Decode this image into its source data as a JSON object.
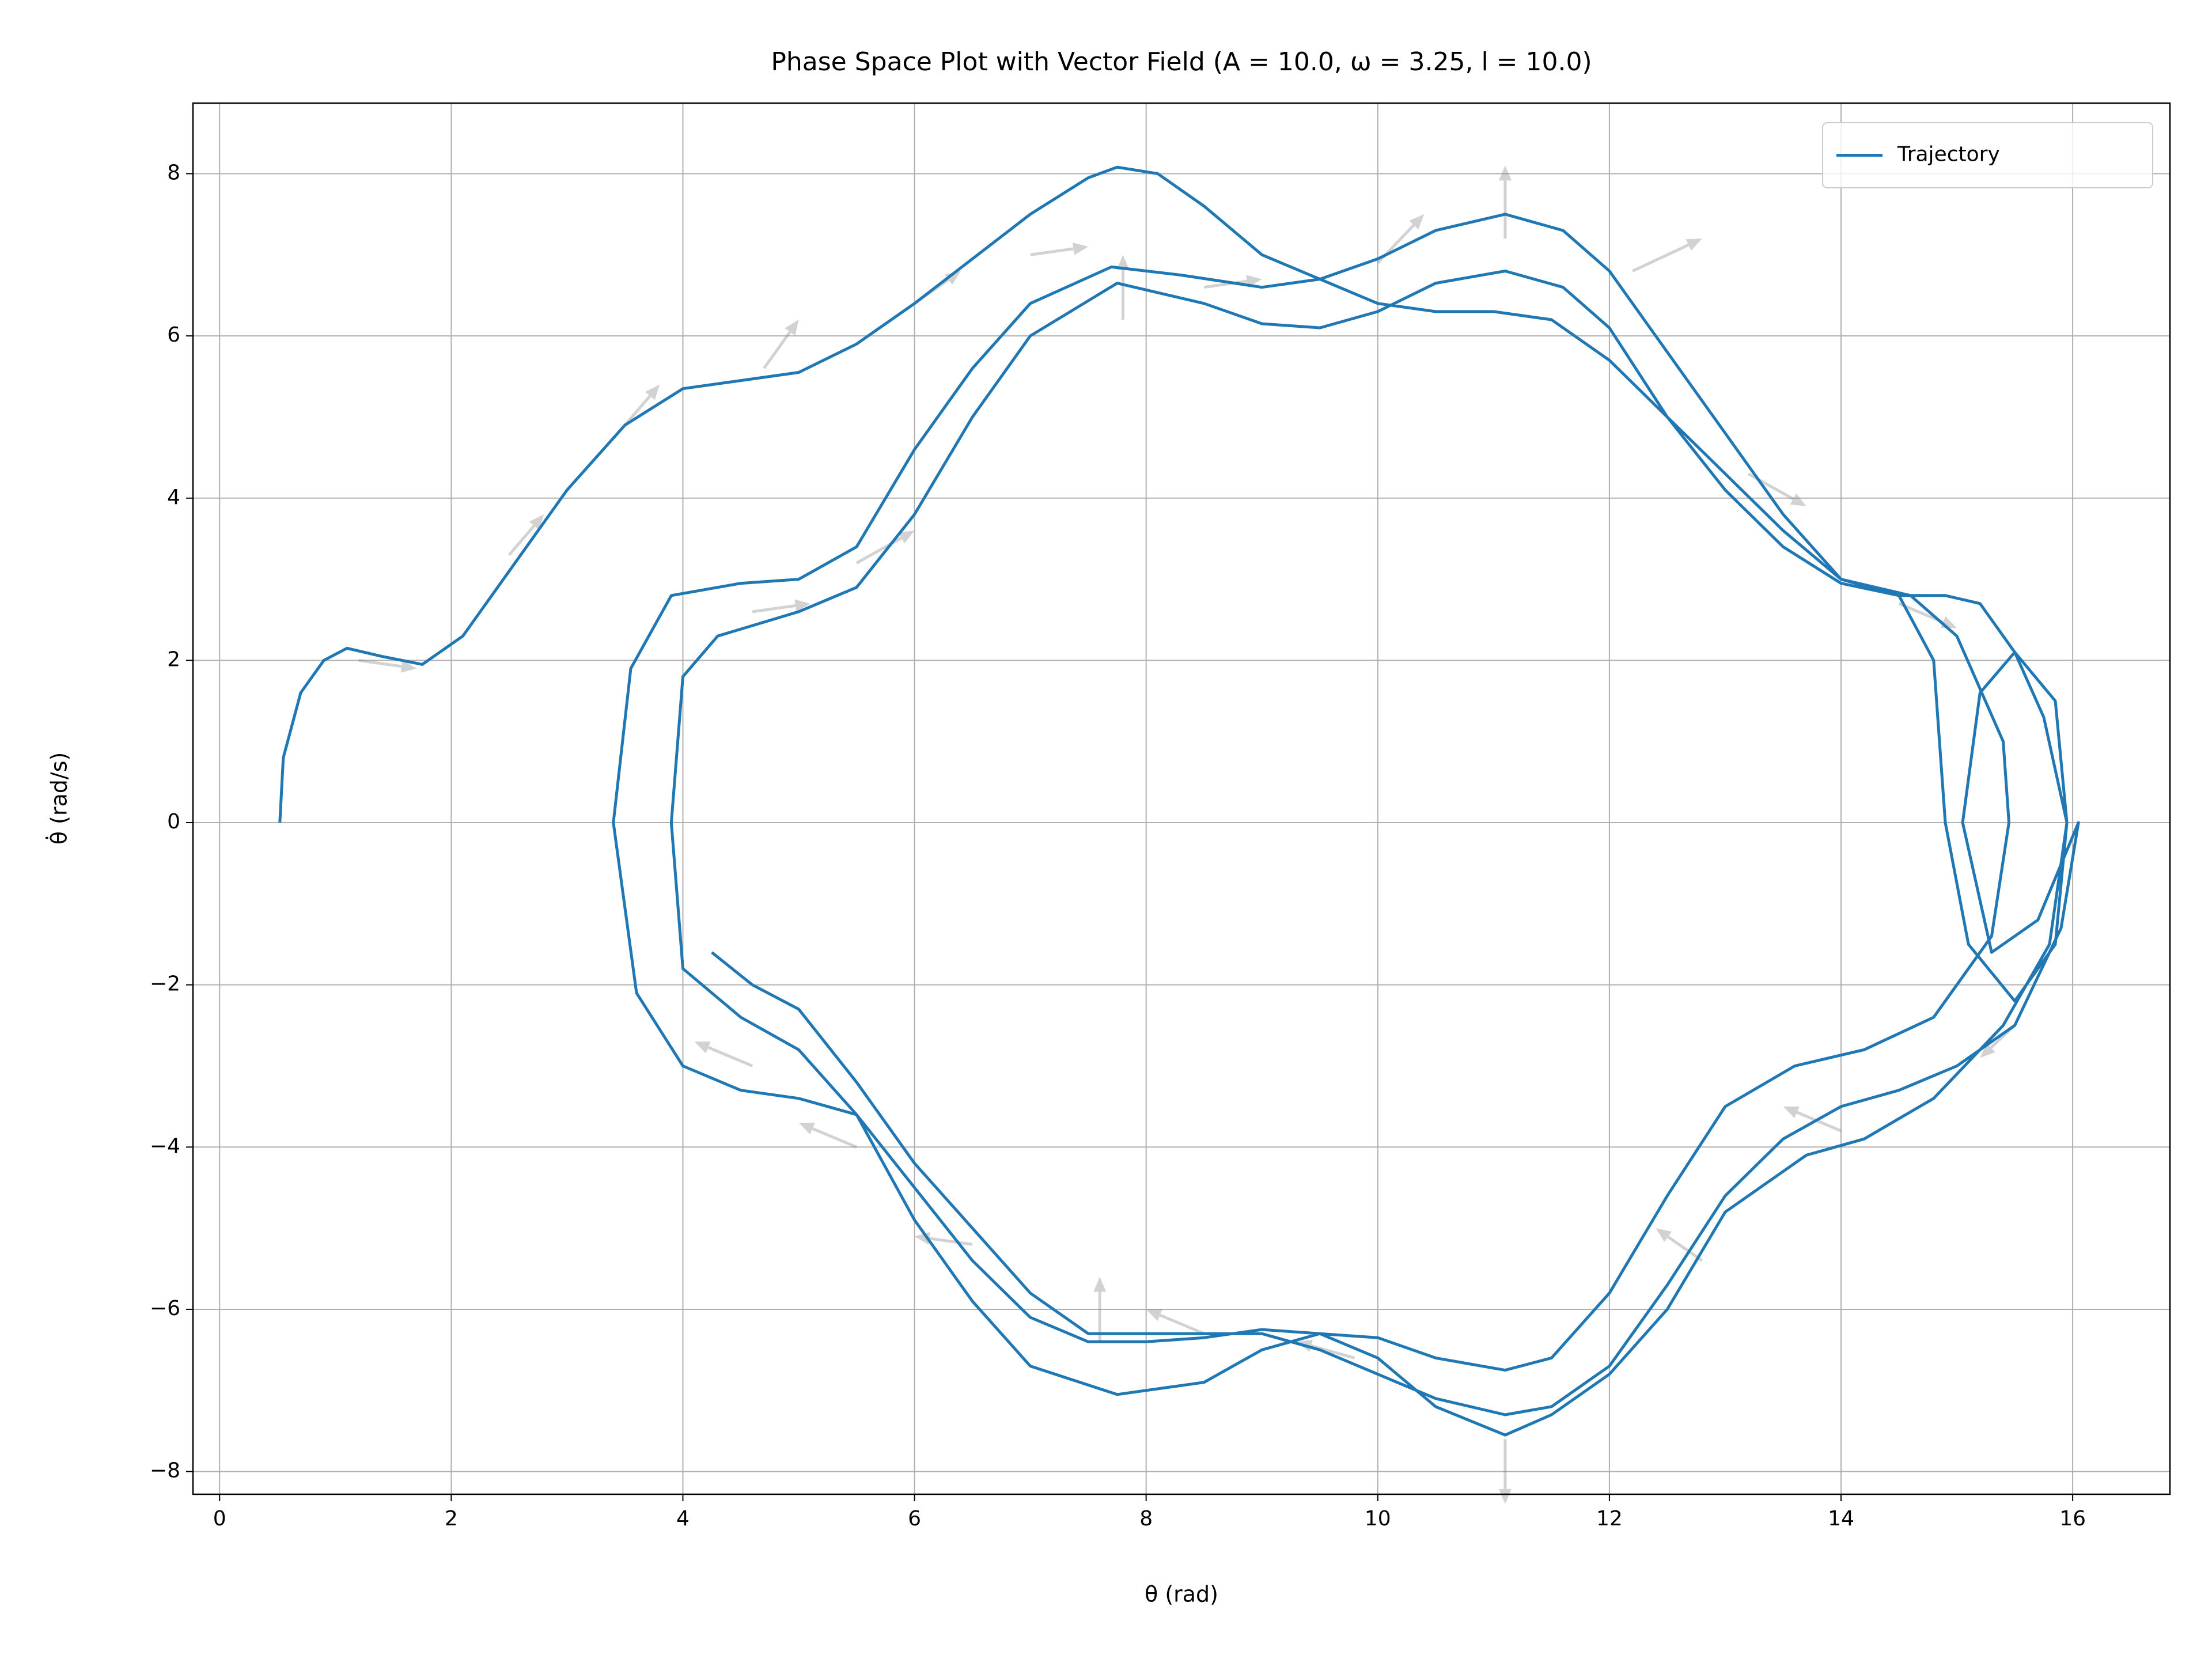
{
  "chart_data": {
    "type": "line",
    "title": "Phase Space Plot with Vector Field (A = 10.0, ω = 3.25, l = 10.0)",
    "xlabel": "θ (rad)",
    "ylabel": "θ̇ (rad/s)",
    "xlim": [
      -0.23,
      16.84
    ],
    "ylim": [
      -8.28,
      8.87
    ],
    "xticks": [
      0,
      2,
      4,
      6,
      8,
      10,
      12,
      14,
      16
    ],
    "yticks": [
      {
        "value": -8,
        "label": "−8"
      },
      {
        "value": -6,
        "label": "−6"
      },
      {
        "value": -4,
        "label": "−4"
      },
      {
        "value": -2,
        "label": "−2"
      },
      0,
      2,
      4,
      6,
      8
    ],
    "grid": true,
    "legend": "upper right",
    "series": [
      {
        "name": "Trajectory",
        "color": "#1f77b4",
        "x": [
          0.52,
          0.55,
          0.7,
          0.9,
          1.1,
          1.4,
          1.75,
          2.1,
          2.5,
          3,
          3.5,
          4,
          4.5,
          5,
          5.5,
          6,
          6.5,
          7,
          7.5,
          7.75,
          8.1,
          8.5,
          9,
          9.5,
          10,
          10.5,
          11,
          11.5,
          12,
          12.5,
          13,
          13.5,
          14,
          14.5,
          14.9,
          15.2,
          15.5,
          15.75,
          15.95,
          15.8,
          15.4,
          14.8,
          14.2,
          13.7,
          13,
          12.5,
          12,
          11.5,
          11.1,
          10.5,
          10,
          9.5,
          9,
          8.5,
          8,
          7.5,
          7,
          6.5,
          6,
          5.5,
          5,
          4.5,
          4,
          3.6,
          3.4,
          3.55,
          3.9,
          4.5,
          5,
          5.5,
          6,
          6.5,
          7,
          7.7,
          8.3,
          9,
          9.5,
          10,
          10.5,
          11.1,
          11.6,
          12,
          12.5,
          13,
          13.5,
          14,
          14.6,
          15,
          15.4,
          15.45,
          15.3,
          14.8,
          14.2,
          13.6,
          13,
          12.5,
          12,
          11.5,
          11.1,
          10.5,
          10,
          9.5,
          9,
          8.5,
          7.75,
          7,
          6.5,
          6,
          5.5,
          5,
          4.5,
          4,
          3.9,
          4,
          4.3,
          5,
          5.5,
          6,
          6.5,
          7,
          7.75,
          8.5,
          9,
          9.5,
          10,
          10.5,
          11.1,
          11.6,
          12,
          12.5,
          13,
          13.5,
          14,
          14.5,
          14.8,
          14.9,
          15.1,
          15.5,
          15.85,
          15.95,
          15.85,
          15.5,
          15.2,
          15.05,
          15.3,
          15.7,
          16.05,
          15.9,
          15.5,
          15,
          14.5,
          14,
          13.5,
          13,
          12.5,
          12,
          11.5,
          11.1,
          10.5,
          10,
          9.5,
          9,
          8.5,
          8,
          7.5,
          7,
          6.5,
          6,
          5.5,
          5,
          4.6,
          4.25
        ],
        "y": [
          0,
          0.8,
          1.6,
          2.0,
          2.15,
          2.05,
          1.95,
          2.3,
          3.1,
          4.1,
          4.9,
          5.35,
          5.45,
          5.55,
          5.9,
          6.4,
          6.95,
          7.5,
          7.95,
          8.08,
          8.0,
          7.6,
          7.0,
          6.7,
          6.4,
          6.3,
          6.3,
          6.2,
          5.7,
          5.0,
          4.3,
          3.6,
          3.0,
          2.8,
          2.8,
          2.7,
          2.1,
          1.3,
          0,
          -1.5,
          -2.5,
          -3.4,
          -3.9,
          -4.1,
          -4.8,
          -6.0,
          -6.8,
          -7.3,
          -7.55,
          -7.2,
          -6.6,
          -6.3,
          -6.25,
          -6.35,
          -6.4,
          -6.4,
          -6.1,
          -5.4,
          -4.5,
          -3.6,
          -3.4,
          -3.3,
          -3.0,
          -2.1,
          0,
          1.9,
          2.8,
          2.95,
          3.0,
          3.4,
          4.6,
          5.6,
          6.4,
          6.85,
          6.75,
          6.6,
          6.7,
          6.95,
          7.3,
          7.5,
          7.3,
          6.8,
          5.8,
          4.8,
          3.8,
          3.0,
          2.8,
          2.3,
          1.0,
          0,
          -1.4,
          -2.4,
          -2.8,
          -3.0,
          -3.5,
          -4.6,
          -5.8,
          -6.6,
          -6.75,
          -6.6,
          -6.35,
          -6.3,
          -6.5,
          -6.9,
          -7.05,
          -6.7,
          -5.9,
          -4.9,
          -3.6,
          -2.8,
          -2.4,
          -1.8,
          0,
          1.8,
          2.3,
          2.6,
          2.9,
          3.8,
          5.0,
          6.0,
          6.65,
          6.4,
          6.15,
          6.1,
          6.3,
          6.65,
          6.8,
          6.6,
          6.1,
          5.0,
          4.1,
          3.4,
          2.95,
          2.8,
          2.0,
          0,
          -1.5,
          -2.2,
          -1.5,
          0,
          1.5,
          2.1,
          1.6,
          0,
          -1.6,
          -1.2,
          0,
          -1.3,
          -2.5,
          -3.0,
          -3.3,
          -3.5,
          -3.9,
          -4.6,
          -5.7,
          -6.7,
          -7.2,
          -7.3,
          -7.1,
          -6.8,
          -6.5,
          -6.3,
          -6.3,
          -6.3,
          -6.3,
          -5.8,
          -5.0,
          -4.2,
          -3.2,
          -2.3,
          -2.0,
          -1.6
        ]
      }
    ],
    "quiver": {
      "color": "#808080",
      "x": [
        1.2,
        2.5,
        3.5,
        4.7,
        6,
        7,
        7.8,
        8.5,
        10,
        11.1,
        12.2,
        13.2,
        14.5,
        15.5,
        14,
        12.8,
        11.1,
        9.8,
        8.5,
        7.6,
        6.5,
        5.5,
        4.6,
        4.6,
        5.5
      ],
      "y": [
        2.0,
        3.3,
        4.9,
        5.6,
        6.4,
        7.0,
        6.2,
        6.6,
        6.9,
        7.2,
        6.8,
        4.3,
        2.7,
        -2.5,
        -3.8,
        -5.4,
        -7.6,
        -6.6,
        -6.3,
        -6.4,
        -5.2,
        -4.0,
        -3.0,
        2.6,
        3.2
      ],
      "u": [
        0.5,
        0.3,
        0.3,
        0.3,
        0.4,
        0.5,
        0,
        0.5,
        0.4,
        0,
        0.6,
        0.5,
        0.5,
        -0.3,
        -0.5,
        -0.4,
        0,
        -0.5,
        -0.5,
        0,
        -0.5,
        -0.5,
        -0.5,
        0.5,
        0.5
      ],
      "v": [
        -0.1,
        0.5,
        0.5,
        0.6,
        0.4,
        0.1,
        0.8,
        0.1,
        0.6,
        0.9,
        0.4,
        -0.4,
        -0.3,
        -0.4,
        0.3,
        0.4,
        -0.8,
        0.2,
        0.3,
        0.8,
        0.1,
        0.3,
        0.3,
        0.1,
        0.4
      ]
    }
  }
}
